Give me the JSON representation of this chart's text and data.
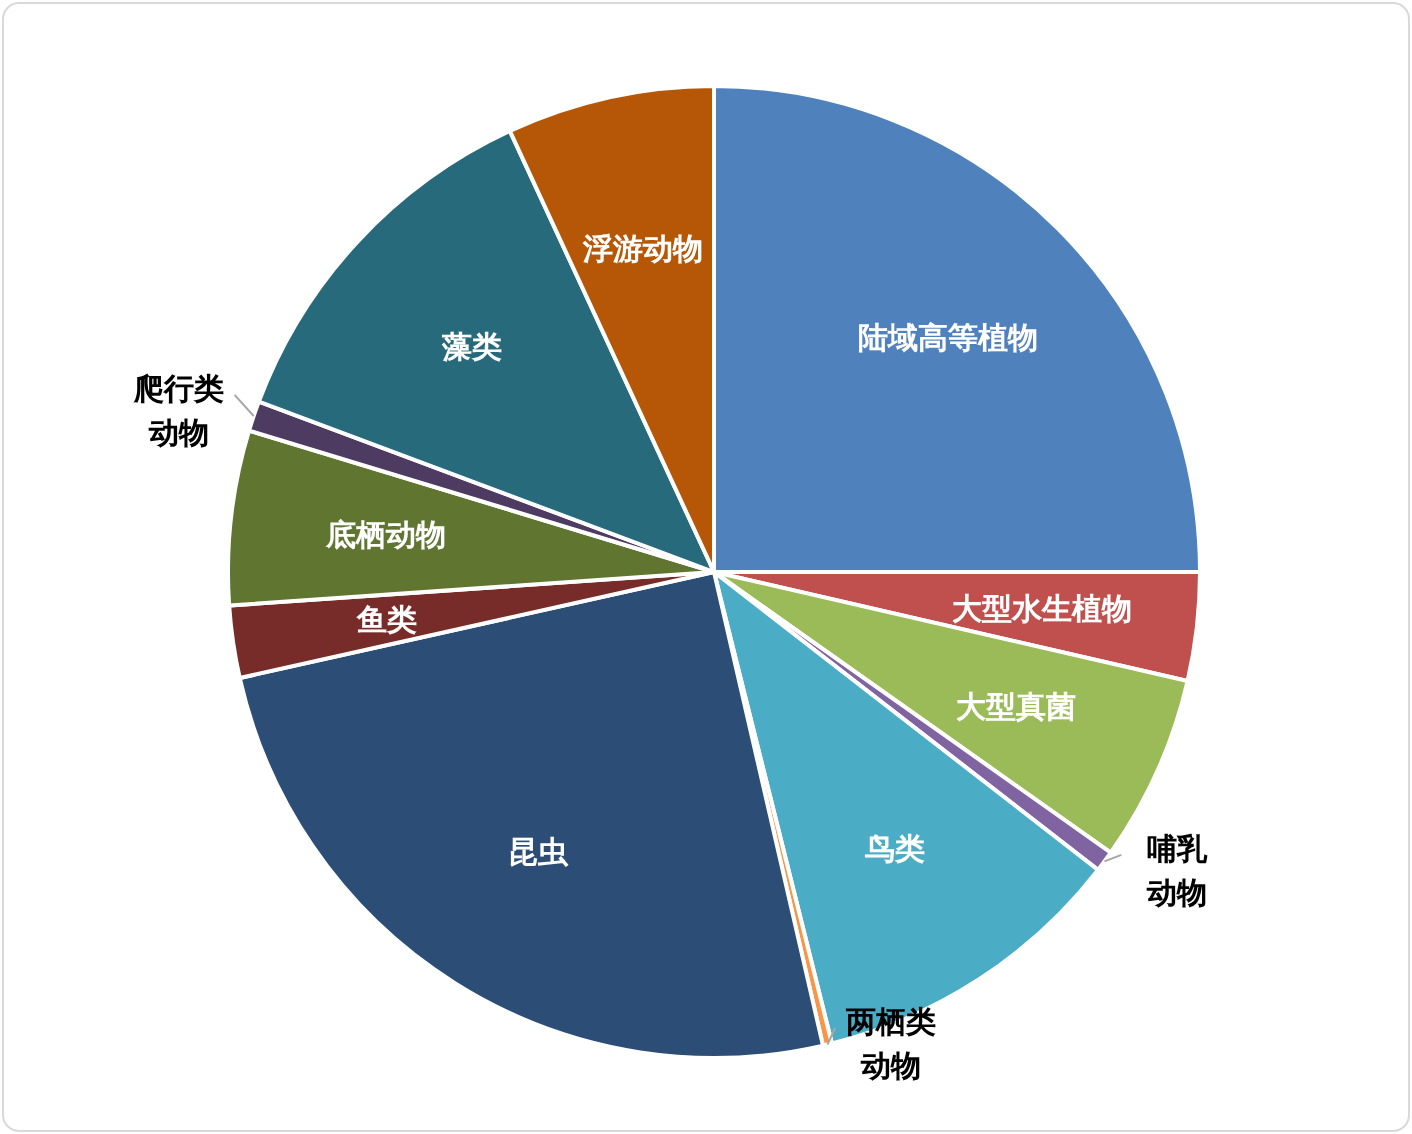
{
  "chart_data": {
    "type": "pie",
    "categories": [
      "陆域高等植物",
      "大型水生植物",
      "大型真菌",
      "哺乳动物",
      "鸟类",
      "两栖类动物",
      "昆虫",
      "鱼类",
      "底栖动物",
      "爬行类动物",
      "藻类",
      "浮游动物"
    ],
    "values": [
      25,
      3.6,
      6.2,
      0.7,
      10.6,
      0.3,
      25.1,
      2.4,
      5.8,
      1,
      12.4,
      6.9
    ],
    "colors": [
      "#4f81bd",
      "#c0504d",
      "#9bbb59",
      "#8064a2",
      "#4bacc6",
      "#f79646",
      "#2c4d75",
      "#772c2a",
      "#5f7530",
      "#4d3b62",
      "#276a7c",
      "#b65708"
    ],
    "legend": false
  }
}
